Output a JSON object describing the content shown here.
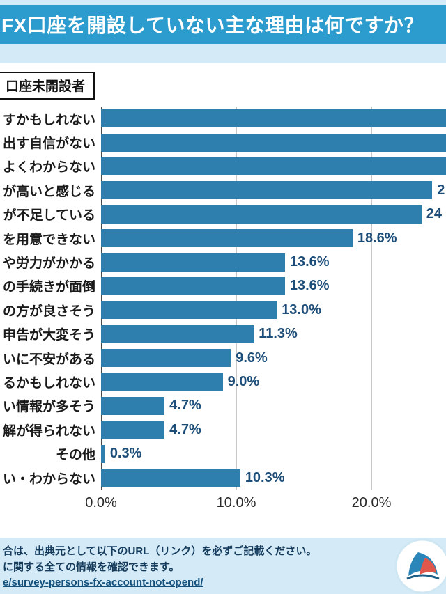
{
  "title": "FX口座を開設していない主な理由は何ですか？",
  "respondent_label": "口座未開設者",
  "chart_data": {
    "type": "bar",
    "orientation": "horizontal",
    "title": "FX口座を開設していない主な理由は何ですか？",
    "categories": [
      "すかもしれない",
      "出す自信がない",
      "よくわからない",
      "が高いと感じる",
      "が不足している",
      "を用意できない",
      "や労力がかかる",
      "の手続きが面倒",
      "の方が良さそう",
      "申告が大変そう",
      "いに不安がある",
      "るかもしれない",
      "い情報が多そう",
      "解が得られない",
      "その他",
      "い・わからない"
    ],
    "values_pct": [
      27.5,
      27.5,
      27.5,
      24.5,
      23.7,
      18.6,
      13.6,
      13.6,
      13.0,
      11.3,
      9.6,
      9.0,
      4.7,
      4.7,
      0.3,
      10.3
    ],
    "value_labels": [
      "",
      "",
      "",
      "2",
      "24",
      "18.6%",
      "13.6%",
      "13.6%",
      "13.0%",
      "11.3%",
      "9.6%",
      "9.0%",
      "4.7%",
      "4.7%",
      "0.3%",
      "10.3%"
    ],
    "x_ticks": [
      {
        "label": "0.0%",
        "pct": 0
      },
      {
        "label": "10.0%",
        "pct": 10
      },
      {
        "label": "20.0%",
        "pct": 20
      }
    ],
    "x_visible_max_pct": 25.5,
    "grid": true,
    "legend": false,
    "bar_color": "#2e7fae",
    "value_label_color": "#1d4e79"
  },
  "footer": {
    "line1": "合は、出典元として以下のURL（リンク）を必ずご記載ください。",
    "line2": "に関する全ての情報を確認できます。",
    "link_text": "e/survey-persons-fx-account-not-opend/"
  },
  "colors": {
    "header_bg": "#2b9ccd",
    "band_bg": "#d4ebf7",
    "bar": "#2e7fae",
    "value_text": "#1d4e79",
    "footer_text": "#143a5c"
  }
}
